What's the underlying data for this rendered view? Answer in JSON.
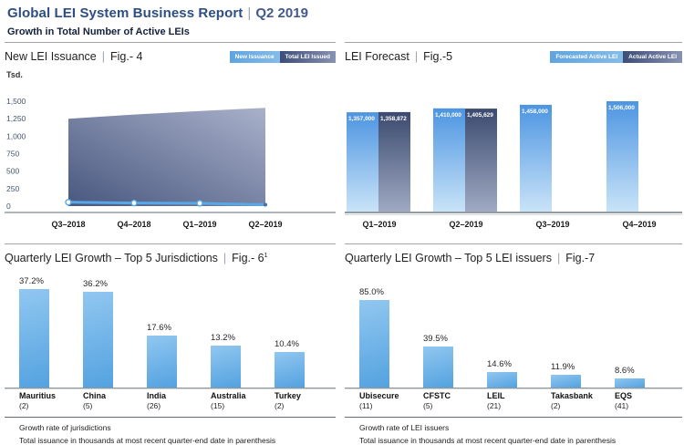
{
  "header": {
    "title": "Global LEI System Business Report",
    "separator": "|",
    "period": "Q2 2019",
    "subtitle": "Growth in Total Number of Active LEIs"
  },
  "colors": {
    "header_blue": "#2d4e82",
    "light_blue": "#58a8e8",
    "navy": "#3c4b70",
    "bar_blue_top": "#91c7f0",
    "bar_blue_bottom": "#53a2e0"
  },
  "chart_data": [
    {
      "id": "new-lei-issuance",
      "type": "area",
      "title": "New LEI Issuance",
      "fig": "Fig.- 4",
      "ylabel": "Tsd.",
      "ylim": [
        0,
        1500
      ],
      "yticks": [
        "1,500",
        "1,250",
        "1,000",
        "750",
        "500",
        "250",
        "0"
      ],
      "categories": [
        "Q3–2018",
        "Q4–2018",
        "Q1–2019",
        "Q2–2019"
      ],
      "series": [
        {
          "name": "New Issuance",
          "type": "line",
          "values": [
            55,
            45,
            40,
            20
          ]
        },
        {
          "name": "Total LEI Issued",
          "type": "area",
          "values": [
            1250,
            1310,
            1360,
            1406
          ]
        }
      ],
      "legend_position": "top-right",
      "grid": false
    },
    {
      "id": "lei-forecast",
      "type": "bar",
      "title": "LEI Forecast",
      "fig": "Fig.-5",
      "categories": [
        "Q1–2019",
        "Q2–2019",
        "Q3–2019",
        "Q4–2019"
      ],
      "series": [
        {
          "name": "Forecasted Active LEI",
          "values": [
            1357000,
            1410000,
            1458000,
            1506000
          ],
          "labels": [
            "1,357,000",
            "1,410,000",
            "1,458,000",
            "1,506,000"
          ]
        },
        {
          "name": "Actual Active LEI",
          "values": [
            1358872,
            1405629,
            null,
            null
          ],
          "labels": [
            "1,358,872",
            "1,405,629",
            "",
            ""
          ]
        }
      ],
      "legend_position": "top-right",
      "grid": false
    },
    {
      "id": "top5-jurisdictions",
      "type": "bar",
      "title": "Quarterly LEI Growth – Top 5 Jurisdictions",
      "fig": "Fig.- 6",
      "fig_sup": "1",
      "categories": [
        "Mauritius",
        "China",
        "India",
        "Australia",
        "Turkey"
      ],
      "category_sub": [
        "(2)",
        "(5)",
        "(26)",
        "(15)",
        "(2)"
      ],
      "values": [
        37.2,
        36.2,
        17.6,
        13.2,
        10.4
      ],
      "value_labels": [
        "37.2%",
        "36.2%",
        "17.6%",
        "13.2%",
        "10.4%"
      ],
      "notes": [
        "Growth rate of jurisdictions",
        "Total issuance in thousands at most recent quarter-end date in parenthesis"
      ]
    },
    {
      "id": "top5-lei-issuers",
      "type": "bar",
      "title": "Quarterly LEI Growth – Top 5 LEI issuers",
      "fig": "Fig.-7",
      "categories": [
        "Ubisecure",
        "CFSTC",
        "LEIL",
        "Takasbank",
        "EQS"
      ],
      "category_sub": [
        "(11)",
        "(5)",
        "(21)",
        "(2)",
        "(41)"
      ],
      "values": [
        85.0,
        39.5,
        14.6,
        11.9,
        8.6
      ],
      "value_labels": [
        "85.0%",
        "39.5%",
        "14.6%",
        "11.9%",
        "8.6%"
      ],
      "notes": [
        "Growth rate of LEI issuers",
        "Total issuance in thousands at most recent quarter-end date in parenthesis"
      ]
    }
  ]
}
